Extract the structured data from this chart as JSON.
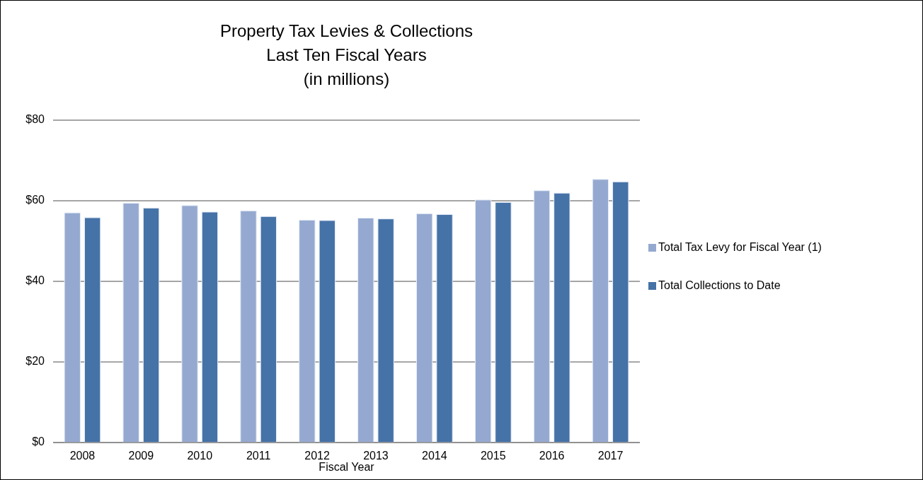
{
  "chart_data": {
    "type": "bar",
    "title": "Property Tax Levies & Collections\nLast Ten Fiscal Years\n(in millions)",
    "xlabel": "Fiscal Year",
    "categories": [
      "2008",
      "2009",
      "2010",
      "2011",
      "2012",
      "2013",
      "2014",
      "2015",
      "2016",
      "2017"
    ],
    "series": [
      {
        "name": "Total Tax Levy for Fiscal Year (1)",
        "color": "#95a9d0",
        "values": [
          57.0,
          59.4,
          58.8,
          57.5,
          55.2,
          55.7,
          56.8,
          60.2,
          62.5,
          65.3
        ]
      },
      {
        "name": "Total Collections to Date",
        "color": "#4572a7",
        "values": [
          55.8,
          58.2,
          57.2,
          56.1,
          55.1,
          55.5,
          56.6,
          59.6,
          61.9,
          64.7
        ]
      }
    ],
    "ylim": [
      0,
      80
    ],
    "yticks": [
      {
        "value": 0,
        "label": "$0"
      },
      {
        "value": 20,
        "label": "$20"
      },
      {
        "value": 40,
        "label": "$40"
      },
      {
        "value": 60,
        "label": "$60"
      },
      {
        "value": 80,
        "label": "$80"
      }
    ],
    "grid": "y",
    "legend": "right"
  }
}
